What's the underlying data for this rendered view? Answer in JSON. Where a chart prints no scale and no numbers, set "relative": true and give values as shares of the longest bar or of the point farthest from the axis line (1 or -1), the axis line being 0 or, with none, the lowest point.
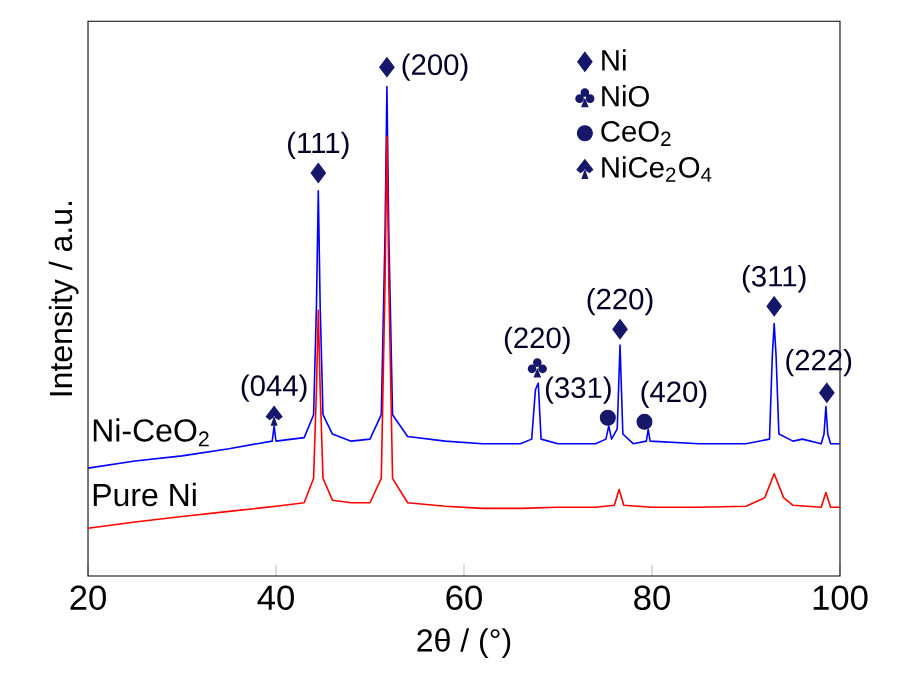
{
  "chart_data": {
    "type": "line",
    "xlabel": "2θ / (°)",
    "ylabel": "Intensity / a.u.",
    "relative": true,
    "xlim": [
      20,
      100
    ],
    "xticks": [
      20,
      40,
      60,
      80,
      100
    ],
    "legend": "top right",
    "grid": false,
    "series": [
      {
        "name": "Ni-CeO$_{2}$",
        "color": "#0000ff",
        "x": [
          20,
          25,
          30,
          35,
          38,
          39.6,
          39.8,
          40.0,
          43,
          44.0,
          44.3,
          44.5,
          44.7,
          45.0,
          46,
          48,
          50,
          51.2,
          51.6,
          51.8,
          52.0,
          52.4,
          54,
          58,
          62,
          66,
          67.2,
          67.6,
          67.9,
          68.2,
          70,
          74,
          75.1,
          75.4,
          75.7,
          76.3,
          76.6,
          76.9,
          78,
          79.4,
          79.6,
          79.8,
          85,
          90,
          92.5,
          92.8,
          93.0,
          93.2,
          93.5,
          95,
          96,
          98,
          98.3,
          98.5,
          98.7,
          99,
          100
        ],
        "values": [
          0.212,
          0.226,
          0.236,
          0.25,
          0.26,
          0.265,
          0.295,
          0.265,
          0.272,
          0.317,
          0.529,
          0.757,
          0.529,
          0.317,
          0.279,
          0.265,
          0.269,
          0.317,
          0.673,
          0.962,
          0.673,
          0.317,
          0.274,
          0.265,
          0.26,
          0.26,
          0.269,
          0.366,
          0.379,
          0.269,
          0.26,
          0.26,
          0.269,
          0.295,
          0.269,
          0.289,
          0.454,
          0.279,
          0.26,
          0.265,
          0.288,
          0.265,
          0.26,
          0.26,
          0.269,
          0.433,
          0.496,
          0.433,
          0.279,
          0.265,
          0.269,
          0.26,
          0.279,
          0.333,
          0.279,
          0.26,
          0.26
        ]
      },
      {
        "name": "Pure Ni",
        "color": "#ff0000",
        "x": [
          20,
          25,
          30,
          35,
          40,
          43,
          44.0,
          44.3,
          44.5,
          44.7,
          45.0,
          46,
          48,
          50,
          51.2,
          51.6,
          51.8,
          52.0,
          52.4,
          54,
          58,
          62,
          66,
          70,
          74,
          76.0,
          76.5,
          77.0,
          80,
          85,
          90,
          92.0,
          93,
          94,
          95,
          98,
          98.5,
          99,
          100
        ],
        "values": [
          0.094,
          0.106,
          0.117,
          0.127,
          0.137,
          0.144,
          0.192,
          0.366,
          0.522,
          0.366,
          0.192,
          0.149,
          0.144,
          0.144,
          0.192,
          0.577,
          0.864,
          0.577,
          0.192,
          0.144,
          0.137,
          0.133,
          0.133,
          0.135,
          0.135,
          0.139,
          0.17,
          0.139,
          0.135,
          0.135,
          0.137,
          0.154,
          0.201,
          0.154,
          0.139,
          0.135,
          0.164,
          0.135,
          0.135
        ]
      },
      {
        "name": "Ni",
        "type": "scatter",
        "marker": "diamond",
        "color": "#16166b",
        "x": [
          44.5,
          51.8,
          76.6,
          93.0,
          98.6
        ],
        "values": [
          0.792,
          1.0,
          0.485,
          0.53,
          0.36
        ]
      },
      {
        "name": "NiO",
        "type": "scatter",
        "marker": "cross",
        "color": "#16166b",
        "x": [
          67.8
        ],
        "values": [
          0.409
        ]
      },
      {
        "name": "CeO$_{2}$",
        "type": "scatter",
        "marker": "circle",
        "color": "#16166b",
        "x": [
          75.3,
          79.2
        ],
        "values": [
          0.311,
          0.303
        ]
      },
      {
        "name": "NiCe$_{2}$O$_{4}$",
        "type": "scatter",
        "color": "#16166b",
        "x": [
          39.8
        ],
        "values": [
          0.315
        ]
      }
    ],
    "annotations": [
      {
        "text": "(044)",
        "x": 39.8,
        "y": 0.315
      },
      {
        "text": "(111)",
        "x": 44.5,
        "y": 0.792
      },
      {
        "text": "(200)",
        "x": 51.8,
        "y": 1.0
      },
      {
        "text": "(220)",
        "x": 67.8,
        "y": 0.409
      },
      {
        "text": "(331)",
        "x": 75.3,
        "y": 0.311
      },
      {
        "text": "(220)",
        "x": 76.6,
        "y": 0.485
      },
      {
        "text": "(420)",
        "x": 79.2,
        "y": 0.303
      },
      {
        "text": "(311)",
        "x": 93.0,
        "y": 0.53
      },
      {
        "text": "(222)",
        "x": 98.6,
        "y": 0.36
      }
    ]
  }
}
